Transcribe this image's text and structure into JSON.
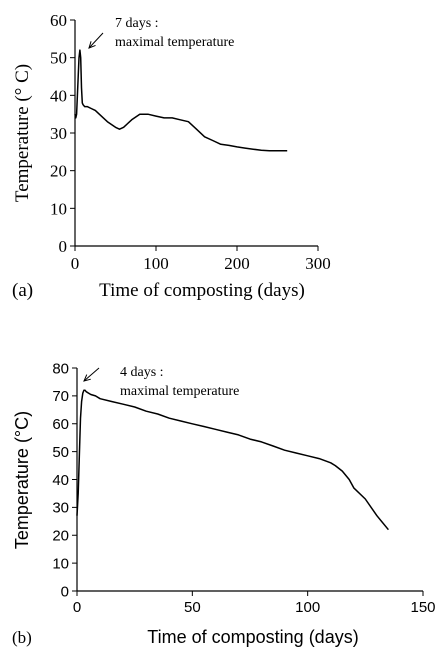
{
  "chart_data": [
    {
      "panel_label": "(a)",
      "type": "line",
      "xlabel": "Time of composting (days)",
      "ylabel": "Temperature (° C)",
      "xlim": [
        0,
        300
      ],
      "ylim": [
        0,
        60
      ],
      "xticks": [
        "0",
        "100",
        "200",
        "300"
      ],
      "yticks": [
        "0",
        "10",
        "20",
        "30",
        "40",
        "50",
        "60"
      ],
      "annotation": {
        "lines": [
          "7 days :",
          "maximal temperature"
        ],
        "points_to": [
          7,
          52
        ]
      },
      "series": [
        {
          "x": [
            0,
            1,
            2,
            3,
            4,
            5,
            6,
            7,
            8,
            9,
            10,
            12,
            15,
            20,
            25,
            30,
            40,
            50,
            55,
            60,
            70,
            80,
            90,
            100,
            110,
            120,
            130,
            140,
            150,
            160,
            170,
            180,
            190,
            200,
            210,
            220,
            230,
            240,
            250,
            262
          ],
          "y": [
            35,
            34,
            35,
            40,
            45,
            50,
            52,
            50,
            42,
            38,
            37.5,
            37,
            37,
            36.5,
            36,
            35,
            33,
            31.5,
            31,
            31.5,
            33.5,
            35,
            35,
            34.5,
            34,
            34,
            33.5,
            33,
            31,
            29,
            28,
            27,
            26.7,
            26.3,
            26,
            25.7,
            25.4,
            25.3,
            25.3,
            25.3
          ]
        }
      ]
    },
    {
      "panel_label": "(b)",
      "type": "line",
      "xlabel": "Time of composting (days)",
      "ylabel": "Temperature (°C)",
      "xlim": [
        0,
        150
      ],
      "ylim": [
        0,
        80
      ],
      "xticks": [
        "0",
        "50",
        "100",
        "150"
      ],
      "yticks": [
        "0",
        "10",
        "20",
        "30",
        "40",
        "50",
        "60",
        "70",
        "80"
      ],
      "annotation": {
        "lines": [
          "4 days :",
          "maximal temperature"
        ],
        "points_to": [
          3.5,
          72
        ]
      },
      "series": [
        {
          "x": [
            0,
            0.5,
            1,
            1.5,
            2,
            2.5,
            3,
            3.5,
            4,
            5,
            6,
            8,
            10,
            15,
            20,
            25,
            30,
            35,
            40,
            45,
            50,
            55,
            60,
            65,
            70,
            75,
            80,
            85,
            90,
            95,
            100,
            105,
            110,
            112,
            115,
            118,
            120,
            125,
            130,
            135
          ],
          "y": [
            27,
            35,
            48,
            62,
            68,
            71,
            72,
            72,
            71.5,
            71,
            70.5,
            70,
            69,
            68,
            67,
            66,
            64.5,
            63.5,
            62,
            61,
            60,
            59,
            58,
            57,
            56,
            54.5,
            53.5,
            52,
            50.5,
            49.5,
            48.5,
            47.5,
            46,
            45,
            43,
            40,
            37,
            33,
            27,
            22
          ]
        }
      ]
    }
  ]
}
